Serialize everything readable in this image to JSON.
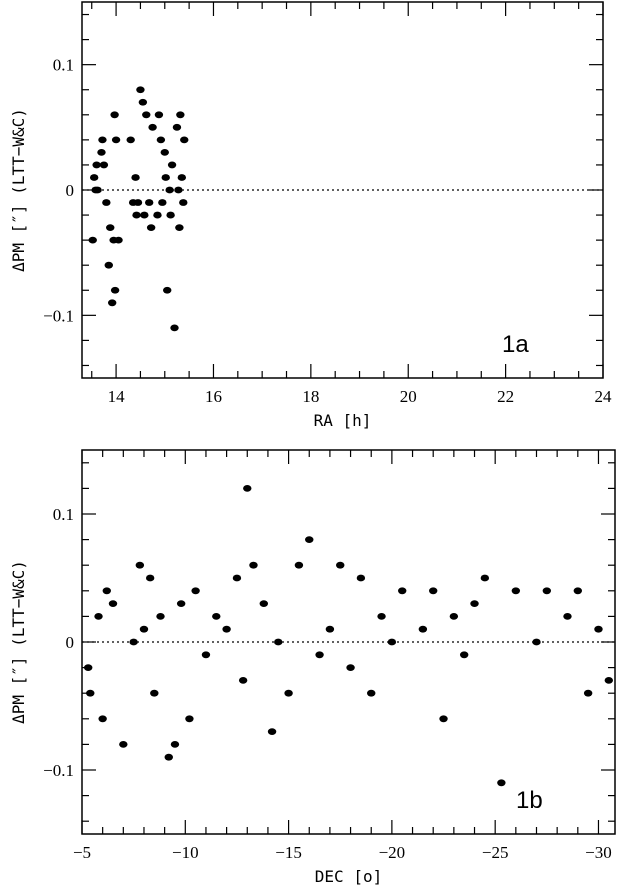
{
  "chart_data": [
    {
      "type": "scatter",
      "panel_label": "1a",
      "xlabel": "RA [h]",
      "ylabel": "ΔPM [″] (LTT−W&C)",
      "xlim": [
        13.3,
        24
      ],
      "ylim": [
        -0.15,
        0.15
      ],
      "xticks": [
        14,
        16,
        18,
        20,
        22,
        24
      ],
      "xtick_labels": [
        "14",
        "16",
        "18",
        "20",
        "22",
        "24"
      ],
      "yticks": [
        -0.1,
        0,
        0.1
      ],
      "ytick_labels": [
        "−0.1",
        "0",
        "0.1"
      ],
      "zero_line": true,
      "points": [
        {
          "x": 13.52,
          "y": -0.04
        },
        {
          "x": 13.55,
          "y": 0.01
        },
        {
          "x": 13.58,
          "y": 0.0
        },
        {
          "x": 13.6,
          "y": 0.02
        },
        {
          "x": 13.62,
          "y": 0.0
        },
        {
          "x": 13.7,
          "y": 0.03
        },
        {
          "x": 13.72,
          "y": 0.04
        },
        {
          "x": 13.75,
          "y": 0.02
        },
        {
          "x": 13.8,
          "y": -0.01
        },
        {
          "x": 13.85,
          "y": -0.06
        },
        {
          "x": 13.88,
          "y": -0.03
        },
        {
          "x": 13.92,
          "y": -0.09
        },
        {
          "x": 13.95,
          "y": -0.04
        },
        {
          "x": 13.97,
          "y": 0.06
        },
        {
          "x": 13.98,
          "y": -0.08
        },
        {
          "x": 14.0,
          "y": 0.04
        },
        {
          "x": 14.05,
          "y": -0.04
        },
        {
          "x": 14.3,
          "y": 0.04
        },
        {
          "x": 14.35,
          "y": -0.01
        },
        {
          "x": 14.4,
          "y": 0.01
        },
        {
          "x": 14.42,
          "y": -0.02
        },
        {
          "x": 14.45,
          "y": -0.01
        },
        {
          "x": 14.5,
          "y": 0.08
        },
        {
          "x": 14.55,
          "y": 0.07
        },
        {
          "x": 14.58,
          "y": -0.02
        },
        {
          "x": 14.62,
          "y": 0.06
        },
        {
          "x": 14.68,
          "y": -0.01
        },
        {
          "x": 14.72,
          "y": -0.03
        },
        {
          "x": 14.75,
          "y": 0.05
        },
        {
          "x": 14.85,
          "y": -0.02
        },
        {
          "x": 14.88,
          "y": 0.06
        },
        {
          "x": 14.92,
          "y": 0.04
        },
        {
          "x": 14.95,
          "y": -0.01
        },
        {
          "x": 15.0,
          "y": 0.03
        },
        {
          "x": 15.02,
          "y": 0.01
        },
        {
          "x": 15.05,
          "y": -0.08
        },
        {
          "x": 15.1,
          "y": 0.0
        },
        {
          "x": 15.12,
          "y": -0.02
        },
        {
          "x": 15.15,
          "y": 0.02
        },
        {
          "x": 15.2,
          "y": -0.11
        },
        {
          "x": 15.25,
          "y": 0.05
        },
        {
          "x": 15.28,
          "y": 0.0
        },
        {
          "x": 15.3,
          "y": -0.03
        },
        {
          "x": 15.32,
          "y": 0.06
        },
        {
          "x": 15.35,
          "y": 0.01
        },
        {
          "x": 15.38,
          "y": -0.01
        },
        {
          "x": 15.4,
          "y": 0.04
        }
      ]
    },
    {
      "type": "scatter",
      "panel_label": "1b",
      "xlabel": "DEC [o]",
      "ylabel": "ΔPM [″] (LTT−W&C)",
      "xlim": [
        -5,
        -30.8
      ],
      "ylim": [
        -0.15,
        0.15
      ],
      "xticks": [
        -5,
        -10,
        -15,
        -20,
        -25,
        -30
      ],
      "xtick_labels": [
        "−5",
        "−10",
        "−15",
        "−20",
        "−25",
        "−30"
      ],
      "yticks": [
        -0.1,
        0,
        0.1
      ],
      "ytick_labels": [
        "−0.1",
        "0",
        "0.1"
      ],
      "zero_line": true,
      "points": [
        {
          "x": -5.3,
          "y": -0.02
        },
        {
          "x": -5.4,
          "y": -0.04
        },
        {
          "x": -5.8,
          "y": 0.02
        },
        {
          "x": -6.0,
          "y": -0.06
        },
        {
          "x": -6.2,
          "y": 0.04
        },
        {
          "x": -6.5,
          "y": 0.03
        },
        {
          "x": -7.0,
          "y": -0.08
        },
        {
          "x": -7.5,
          "y": 0.0
        },
        {
          "x": -7.8,
          "y": 0.06
        },
        {
          "x": -8.0,
          "y": 0.01
        },
        {
          "x": -8.3,
          "y": 0.05
        },
        {
          "x": -8.5,
          "y": -0.04
        },
        {
          "x": -8.8,
          "y": 0.02
        },
        {
          "x": -9.2,
          "y": -0.09
        },
        {
          "x": -9.5,
          "y": -0.08
        },
        {
          "x": -9.8,
          "y": 0.03
        },
        {
          "x": -10.2,
          "y": -0.06
        },
        {
          "x": -10.5,
          "y": 0.04
        },
        {
          "x": -11.0,
          "y": -0.01
        },
        {
          "x": -11.5,
          "y": 0.02
        },
        {
          "x": -12.0,
          "y": 0.01
        },
        {
          "x": -12.5,
          "y": 0.05
        },
        {
          "x": -12.8,
          "y": -0.03
        },
        {
          "x": -13.0,
          "y": 0.12
        },
        {
          "x": -13.3,
          "y": 0.06
        },
        {
          "x": -13.8,
          "y": 0.03
        },
        {
          "x": -14.2,
          "y": -0.07
        },
        {
          "x": -14.5,
          "y": 0.0
        },
        {
          "x": -15.0,
          "y": -0.04
        },
        {
          "x": -15.5,
          "y": 0.06
        },
        {
          "x": -16.0,
          "y": 0.08
        },
        {
          "x": -16.5,
          "y": -0.01
        },
        {
          "x": -17.0,
          "y": 0.01
        },
        {
          "x": -17.5,
          "y": 0.06
        },
        {
          "x": -18.0,
          "y": -0.02
        },
        {
          "x": -18.5,
          "y": 0.05
        },
        {
          "x": -19.0,
          "y": -0.04
        },
        {
          "x": -19.5,
          "y": 0.02
        },
        {
          "x": -20.0,
          "y": 0.0
        },
        {
          "x": -20.5,
          "y": 0.04
        },
        {
          "x": -21.5,
          "y": 0.01
        },
        {
          "x": -22.0,
          "y": 0.04
        },
        {
          "x": -22.5,
          "y": -0.06
        },
        {
          "x": -23.0,
          "y": 0.02
        },
        {
          "x": -23.5,
          "y": -0.01
        },
        {
          "x": -24.0,
          "y": 0.03
        },
        {
          "x": -24.5,
          "y": 0.05
        },
        {
          "x": -25.3,
          "y": -0.11
        },
        {
          "x": -26.0,
          "y": 0.04
        },
        {
          "x": -27.0,
          "y": 0.0
        },
        {
          "x": -27.5,
          "y": 0.04
        },
        {
          "x": -28.5,
          "y": 0.02
        },
        {
          "x": -29.0,
          "y": 0.04
        },
        {
          "x": -29.5,
          "y": -0.04
        },
        {
          "x": -30.0,
          "y": 0.01
        },
        {
          "x": -30.5,
          "y": -0.03
        }
      ]
    }
  ]
}
